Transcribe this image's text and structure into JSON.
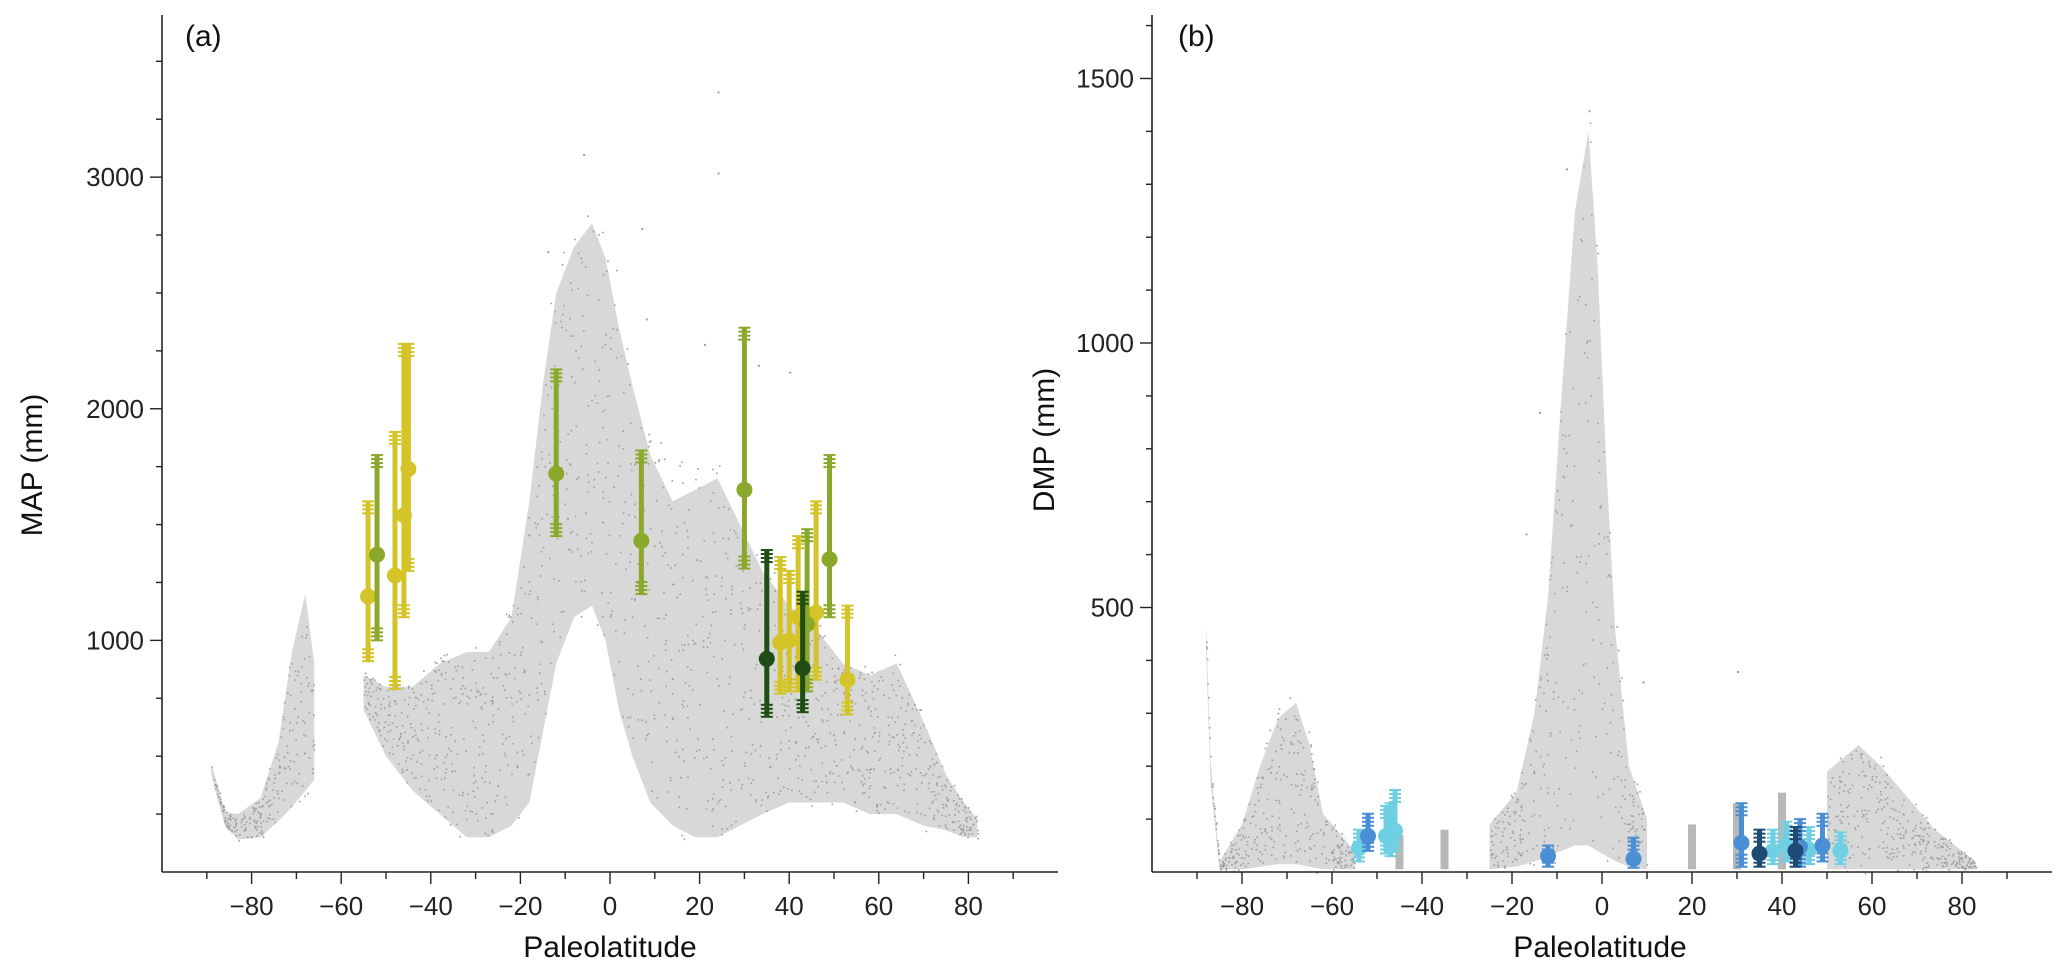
{
  "chart_data": [
    {
      "panel": "(a)",
      "type": "scatter",
      "xlabel": "Paleolatitude",
      "ylabel": "MAP (mm)",
      "xlim": [
        -100,
        100
      ],
      "ylim": [
        0,
        3700
      ],
      "xticks": [
        -80,
        -60,
        -40,
        -20,
        0,
        20,
        40,
        60,
        80
      ],
      "yticks": [
        1000,
        2000,
        3000
      ],
      "grid": false,
      "background_cloud": {
        "color": "#b8b8b8",
        "envelope": [
          {
            "x": -89,
            "lo": 420,
            "hi": 470
          },
          {
            "x": -86,
            "lo": 200,
            "hi": 260
          },
          {
            "x": -83,
            "lo": 140,
            "hi": 250
          },
          {
            "x": -78,
            "lo": 150,
            "hi": 320
          },
          {
            "x": -74,
            "lo": 220,
            "hi": 560
          },
          {
            "x": -71,
            "lo": 280,
            "hi": 950
          },
          {
            "x": -68,
            "lo": 350,
            "hi": 1200
          },
          {
            "x": -66,
            "lo": 400,
            "hi": 900
          },
          {
            "x": -55,
            "lo": 700,
            "hi": 850
          },
          {
            "x": -50,
            "lo": 500,
            "hi": 800
          },
          {
            "x": -44,
            "lo": 350,
            "hi": 800
          },
          {
            "x": -38,
            "lo": 250,
            "hi": 900
          },
          {
            "x": -32,
            "lo": 150,
            "hi": 950
          },
          {
            "x": -27,
            "lo": 150,
            "hi": 950
          },
          {
            "x": -22,
            "lo": 200,
            "hi": 1100
          },
          {
            "x": -18,
            "lo": 300,
            "hi": 1600
          },
          {
            "x": -15,
            "lo": 600,
            "hi": 2100
          },
          {
            "x": -12,
            "lo": 900,
            "hi": 2500
          },
          {
            "x": -8,
            "lo": 1100,
            "hi": 2700
          },
          {
            "x": -4,
            "lo": 1150,
            "hi": 2800
          },
          {
            "x": -1,
            "lo": 1000,
            "hi": 2650
          },
          {
            "x": 2,
            "lo": 700,
            "hi": 2350
          },
          {
            "x": 5,
            "lo": 500,
            "hi": 2100
          },
          {
            "x": 9,
            "lo": 300,
            "hi": 1800
          },
          {
            "x": 14,
            "lo": 200,
            "hi": 1600
          },
          {
            "x": 19,
            "lo": 150,
            "hi": 1650
          },
          {
            "x": 24,
            "lo": 150,
            "hi": 1700
          },
          {
            "x": 29,
            "lo": 200,
            "hi": 1500
          },
          {
            "x": 34,
            "lo": 250,
            "hi": 1300
          },
          {
            "x": 40,
            "lo": 300,
            "hi": 1150
          },
          {
            "x": 46,
            "lo": 300,
            "hi": 1050
          },
          {
            "x": 52,
            "lo": 300,
            "hi": 900
          },
          {
            "x": 58,
            "lo": 250,
            "hi": 850
          },
          {
            "x": 64,
            "lo": 250,
            "hi": 900
          },
          {
            "x": 70,
            "lo": 200,
            "hi": 650
          },
          {
            "x": 75,
            "lo": 180,
            "hi": 420
          },
          {
            "x": 79,
            "lo": 150,
            "hi": 300
          },
          {
            "x": 82,
            "lo": 150,
            "hi": 230
          }
        ],
        "outliers": [
          {
            "x": 24,
            "y": 3370
          },
          {
            "x": 24,
            "y": 3020
          },
          {
            "x": -6,
            "y": 3100
          },
          {
            "x": 7,
            "y": 2780
          },
          {
            "x": -14,
            "y": 2680
          },
          {
            "x": 8,
            "y": 2390
          },
          {
            "x": 21,
            "y": 2280
          },
          {
            "x": 33,
            "y": 2190
          },
          {
            "x": 40,
            "y": 2160
          }
        ]
      },
      "series": [
        {
          "color": "#d4c427",
          "points": [
            {
              "x": -54,
              "y": 1190,
              "lo": 910,
              "hi": 1600
            },
            {
              "x": -48,
              "y": 1280,
              "lo": 790,
              "hi": 1900
            },
            {
              "x": -46,
              "y": 1540,
              "lo": 1100,
              "hi": 2280
            },
            {
              "x": -45,
              "y": 1740,
              "lo": 1300,
              "hi": 2280
            },
            {
              "x": 38,
              "y": 990,
              "lo": 770,
              "hi": 1360
            },
            {
              "x": 40,
              "y": 1000,
              "lo": 780,
              "hi": 1300
            },
            {
              "x": 42,
              "y": 1100,
              "lo": 780,
              "hi": 1450
            },
            {
              "x": 46,
              "y": 1120,
              "lo": 830,
              "hi": 1600
            },
            {
              "x": 53,
              "y": 830,
              "lo": 680,
              "hi": 1150
            }
          ]
        },
        {
          "color": "#8aa82a",
          "points": [
            {
              "x": -52,
              "y": 1370,
              "lo": 1000,
              "hi": 1800
            },
            {
              "x": -12,
              "y": 1720,
              "lo": 1450,
              "hi": 2170
            },
            {
              "x": 7,
              "y": 1430,
              "lo": 1200,
              "hi": 1820
            },
            {
              "x": 30,
              "y": 1650,
              "lo": 1310,
              "hi": 2350
            },
            {
              "x": 44,
              "y": 1070,
              "lo": 780,
              "hi": 1480
            },
            {
              "x": 49,
              "y": 1350,
              "lo": 1100,
              "hi": 1800
            }
          ]
        },
        {
          "color": "#1f4d14",
          "points": [
            {
              "x": 35,
              "y": 920,
              "lo": 670,
              "hi": 1390
            },
            {
              "x": 43,
              "y": 880,
              "lo": 690,
              "hi": 1210
            }
          ]
        }
      ]
    },
    {
      "panel": "(b)",
      "type": "scatter",
      "xlabel": "Paleolatitude",
      "ylabel": "DMP (mm)",
      "xlim": [
        -100,
        100
      ],
      "ylim": [
        0,
        1620
      ],
      "xticks": [
        -80,
        -60,
        -40,
        -20,
        0,
        20,
        40,
        60,
        80
      ],
      "yticks": [
        500,
        1000,
        1500
      ],
      "grid": false,
      "background_cloud": {
        "color": "#b8b8b8",
        "envelope": [
          {
            "x": -88,
            "lo": 420,
            "hi": 470
          },
          {
            "x": -87,
            "lo": 170,
            "hi": 210
          },
          {
            "x": -85,
            "lo": 5,
            "hi": 20
          },
          {
            "x": -80,
            "lo": 5,
            "hi": 90
          },
          {
            "x": -76,
            "lo": 10,
            "hi": 200
          },
          {
            "x": -72,
            "lo": 15,
            "hi": 290
          },
          {
            "x": -68,
            "lo": 15,
            "hi": 320
          },
          {
            "x": -65,
            "lo": 10,
            "hi": 240
          },
          {
            "x": -62,
            "lo": 5,
            "hi": 110
          },
          {
            "x": -55,
            "lo": 5,
            "hi": 40
          },
          {
            "x": -45,
            "lo": 5,
            "hi": 70
          },
          {
            "x": -35,
            "lo": 5,
            "hi": 80
          },
          {
            "x": -25,
            "lo": 5,
            "hi": 90
          },
          {
            "x": -19,
            "lo": 10,
            "hi": 150
          },
          {
            "x": -15,
            "lo": 20,
            "hi": 300
          },
          {
            "x": -12,
            "lo": 30,
            "hi": 520
          },
          {
            "x": -9,
            "lo": 40,
            "hi": 900
          },
          {
            "x": -6,
            "lo": 50,
            "hi": 1250
          },
          {
            "x": -3,
            "lo": 50,
            "hi": 1400
          },
          {
            "x": -1,
            "lo": 40,
            "hi": 1150
          },
          {
            "x": 1,
            "lo": 30,
            "hi": 760
          },
          {
            "x": 3,
            "lo": 20,
            "hi": 450
          },
          {
            "x": 6,
            "lo": 10,
            "hi": 200
          },
          {
            "x": 10,
            "lo": 5,
            "hi": 100
          },
          {
            "x": 20,
            "lo": 5,
            "hi": 90
          },
          {
            "x": 30,
            "lo": 5,
            "hi": 130
          },
          {
            "x": 40,
            "lo": 5,
            "hi": 150
          },
          {
            "x": 50,
            "lo": 5,
            "hi": 190
          },
          {
            "x": 57,
            "lo": 5,
            "hi": 240
          },
          {
            "x": 62,
            "lo": 5,
            "hi": 200
          },
          {
            "x": 68,
            "lo": 5,
            "hi": 140
          },
          {
            "x": 74,
            "lo": 5,
            "hi": 80
          },
          {
            "x": 80,
            "lo": 5,
            "hi": 40
          },
          {
            "x": 83,
            "lo": 5,
            "hi": 20
          }
        ],
        "outliers": [
          {
            "x": -3,
            "y": 1440
          },
          {
            "x": -8,
            "y": 1330
          },
          {
            "x": -14,
            "y": 870
          },
          {
            "x": -17,
            "y": 640
          },
          {
            "x": 9,
            "y": 360
          },
          {
            "x": 30,
            "y": 380
          }
        ]
      },
      "series": [
        {
          "color": "#6fcfe3",
          "points": [
            {
              "x": -54,
              "y": 45,
              "lo": 20,
              "hi": 80
            },
            {
              "x": -48,
              "y": 68,
              "lo": 35,
              "hi": 125
            },
            {
              "x": -47,
              "y": 60,
              "lo": 30,
              "hi": 130
            },
            {
              "x": -46,
              "y": 78,
              "lo": 40,
              "hi": 155
            },
            {
              "x": 38,
              "y": 40,
              "lo": 15,
              "hi": 80
            },
            {
              "x": 41,
              "y": 52,
              "lo": 20,
              "hi": 95
            },
            {
              "x": 46,
              "y": 42,
              "lo": 15,
              "hi": 85
            },
            {
              "x": 53,
              "y": 40,
              "lo": 15,
              "hi": 75
            }
          ]
        },
        {
          "color": "#4a8fd4",
          "points": [
            {
              "x": -52,
              "y": 68,
              "lo": 40,
              "hi": 110
            },
            {
              "x": -12,
              "y": 30,
              "lo": 10,
              "hi": 50
            },
            {
              "x": 7,
              "y": 25,
              "lo": 8,
              "hi": 65
            },
            {
              "x": 31,
              "y": 55,
              "lo": 10,
              "hi": 130
            },
            {
              "x": 44,
              "y": 48,
              "lo": 10,
              "hi": 100
            },
            {
              "x": 49,
              "y": 50,
              "lo": 20,
              "hi": 110
            }
          ]
        },
        {
          "color": "#1f4a74",
          "points": [
            {
              "x": 35,
              "y": 35,
              "lo": 10,
              "hi": 80
            },
            {
              "x": 43,
              "y": 40,
              "lo": 10,
              "hi": 85
            }
          ]
        }
      ]
    }
  ]
}
